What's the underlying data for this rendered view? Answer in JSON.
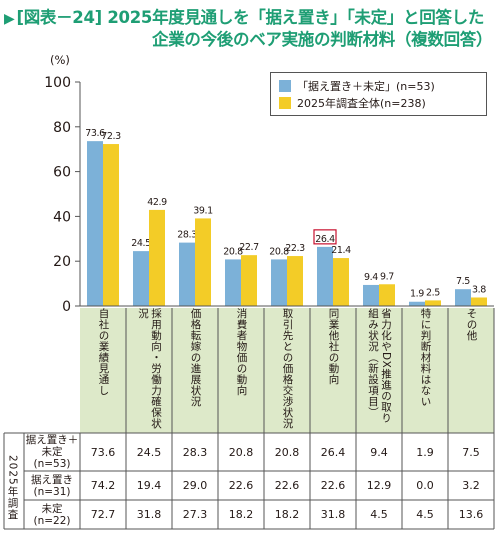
{
  "title": {
    "marker": "▶",
    "line1": "[図表－24] 2025年度見通しを「据え置き」「未定」と回答した",
    "line2": "企業の今後のベア実施の判断材料（複数回答）"
  },
  "colors": {
    "series1": "#7cb1d8",
    "series2": "#f3cc27",
    "table_band": "#dde9c9",
    "highlight_box": "#c8102e",
    "axis": "#555555"
  },
  "chart_data": {
    "type": "bar",
    "unit_label": "(%)",
    "ylim": [
      0,
      100
    ],
    "yticks": [
      0,
      20,
      40,
      60,
      80,
      100
    ],
    "grid": false,
    "legend_position": "top-right",
    "categories": [
      "自社の業績見通し",
      "採用動向・労働力確保状況",
      "価格転嫁の進展状況",
      "消費者物価の動向",
      "取引先との価格交渉状況",
      "同業他社の動向",
      "省力化やDX推進の取り組み状況（新設項目）",
      "特に判断材料はない",
      "その他"
    ],
    "series": [
      {
        "name": "「据え置き＋未定」(n=53)",
        "values": [
          73.6,
          24.5,
          28.3,
          20.8,
          20.8,
          26.4,
          9.4,
          1.9,
          7.5
        ]
      },
      {
        "name": "2025年調査全体(n=238)",
        "values": [
          72.3,
          42.9,
          39.1,
          22.7,
          22.3,
          21.4,
          9.7,
          2.5,
          3.8
        ]
      }
    ],
    "highlight_label": "26.4",
    "table": {
      "group_label": "2025年調査",
      "rows": [
        {
          "label": "据え置き＋未定(n=53)",
          "values": [
            "73.6",
            "24.5",
            "28.3",
            "20.8",
            "20.8",
            "26.4",
            "9.4",
            "1.9",
            "7.5"
          ]
        },
        {
          "label": "据え置き(n=31)",
          "values": [
            "74.2",
            "19.4",
            "29.0",
            "22.6",
            "22.6",
            "22.6",
            "12.9",
            "0.0",
            "3.2"
          ]
        },
        {
          "label": "未定(n=22)",
          "values": [
            "72.7",
            "31.8",
            "27.3",
            "18.2",
            "18.2",
            "31.8",
            "4.5",
            "4.5",
            "13.6"
          ]
        }
      ]
    }
  }
}
